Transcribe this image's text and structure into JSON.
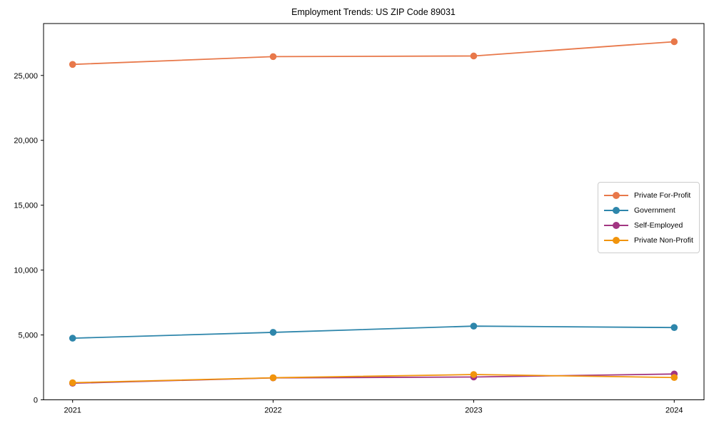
{
  "chart_data": {
    "type": "line",
    "title": "Employment Trends: US ZIP Code 89031",
    "x": [
      "2021",
      "2022",
      "2023",
      "2024"
    ],
    "series": [
      {
        "name": "Private For-Profit",
        "color": "#E8784A",
        "values": [
          25850,
          26450,
          26500,
          27600
        ]
      },
      {
        "name": "Government",
        "color": "#2E86AB",
        "values": [
          4750,
          5200,
          5680,
          5570
        ]
      },
      {
        "name": "Self-Employed",
        "color": "#A23582",
        "values": [
          1280,
          1690,
          1760,
          1990
        ]
      },
      {
        "name": "Private Non-Profit",
        "color": "#F1940C",
        "values": [
          1320,
          1700,
          1950,
          1720
        ]
      }
    ],
    "xlabel": "",
    "ylabel": "",
    "ylim": [
      0,
      29000
    ],
    "yticks": [
      0,
      5000,
      10000,
      15000,
      20000,
      25000
    ],
    "grid": false,
    "legend_position": "right",
    "axis_color": "#000000",
    "background_color": "#ffffff"
  }
}
